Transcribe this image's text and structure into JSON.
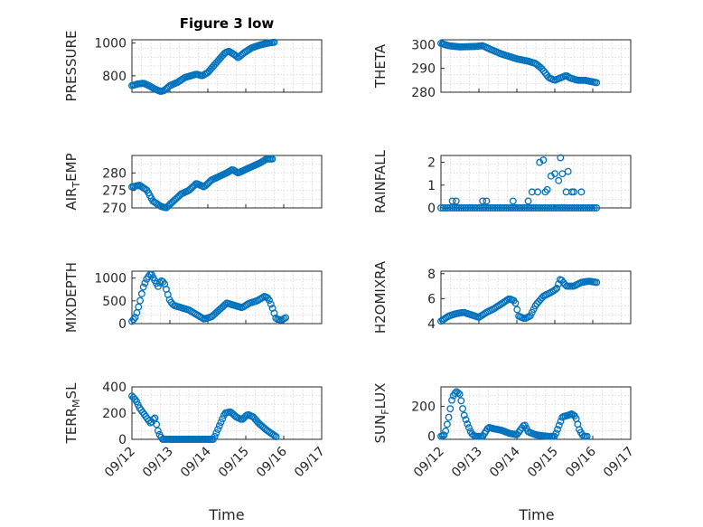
{
  "figure": {
    "title": "Figure 3 low",
    "xlabel": "Time"
  },
  "colors": {
    "series": "#0072BD",
    "axis": "#262626",
    "grid": "#c9c9c9"
  },
  "chart_data": [
    {
      "type": "scatter",
      "ylabel": "PRESSURE",
      "xlim": [
        "09/12",
        "09/17"
      ],
      "ylim": [
        700,
        1020
      ],
      "yticks": [
        800,
        1000
      ],
      "grid": true,
      "show_xticklabels": false,
      "title": "Figure 3 low",
      "keypoints": [
        [
          0.0,
          740
        ],
        [
          0.15,
          750
        ],
        [
          0.3,
          755
        ],
        [
          0.45,
          740
        ],
        [
          0.6,
          720
        ],
        [
          0.75,
          705
        ],
        [
          0.85,
          710
        ],
        [
          1.0,
          740
        ],
        [
          1.2,
          760
        ],
        [
          1.4,
          790
        ],
        [
          1.55,
          800
        ],
        [
          1.7,
          810
        ],
        [
          1.85,
          800
        ],
        [
          2.0,
          820
        ],
        [
          2.15,
          860
        ],
        [
          2.3,
          900
        ],
        [
          2.45,
          940
        ],
        [
          2.55,
          950
        ],
        [
          2.7,
          930
        ],
        [
          2.8,
          910
        ],
        [
          2.95,
          940
        ],
        [
          3.15,
          970
        ],
        [
          3.4,
          990
        ],
        [
          3.6,
          1000
        ],
        [
          3.75,
          1005
        ]
      ],
      "n_points": 95
    },
    {
      "type": "scatter",
      "ylabel": "THETA",
      "xlim": [
        "09/12",
        "09/17"
      ],
      "ylim": [
        280,
        302
      ],
      "yticks": [
        280,
        290,
        300
      ],
      "grid": true,
      "show_xticklabels": false,
      "keypoints": [
        [
          0.0,
          300.5
        ],
        [
          0.2,
          299.5
        ],
        [
          0.5,
          299.0
        ],
        [
          0.9,
          299.2
        ],
        [
          1.1,
          299.5
        ],
        [
          1.3,
          298
        ],
        [
          1.6,
          296
        ],
        [
          2.0,
          294
        ],
        [
          2.3,
          293
        ],
        [
          2.5,
          292
        ],
        [
          2.65,
          290
        ],
        [
          2.85,
          286
        ],
        [
          3.0,
          285
        ],
        [
          3.15,
          286
        ],
        [
          3.3,
          287
        ],
        [
          3.4,
          286
        ],
        [
          3.6,
          285
        ],
        [
          3.8,
          285
        ],
        [
          3.95,
          284.5
        ],
        [
          4.1,
          284
        ]
      ],
      "n_points": 95
    },
    {
      "type": "scatter",
      "ylabel": "AIR_TEMP",
      "xlim": [
        "09/12",
        "09/17"
      ],
      "ylim": [
        270,
        285
      ],
      "yticks": [
        270,
        275,
        280
      ],
      "grid": true,
      "show_xticklabels": false,
      "keypoints": [
        [
          0.0,
          276
        ],
        [
          0.2,
          276.5
        ],
        [
          0.4,
          275
        ],
        [
          0.55,
          272
        ],
        [
          0.75,
          270.5
        ],
        [
          0.9,
          270
        ],
        [
          1.1,
          272
        ],
        [
          1.3,
          274
        ],
        [
          1.5,
          275
        ],
        [
          1.7,
          277
        ],
        [
          1.9,
          276
        ],
        [
          2.1,
          278
        ],
        [
          2.3,
          279
        ],
        [
          2.5,
          280
        ],
        [
          2.65,
          281
        ],
        [
          2.8,
          280
        ],
        [
          3.0,
          281
        ],
        [
          3.2,
          282
        ],
        [
          3.4,
          283
        ],
        [
          3.55,
          284
        ],
        [
          3.7,
          284
        ]
      ],
      "n_points": 95
    },
    {
      "type": "scatter",
      "ylabel": "RAINFALL",
      "xlim": [
        "09/12",
        "09/17"
      ],
      "ylim": [
        0,
        2.3
      ],
      "yticks": [
        0,
        1,
        2
      ],
      "grid": true,
      "show_xticklabels": false,
      "baseline": {
        "x_start": 0.0,
        "x_end": 4.1,
        "y": 0,
        "n": 70
      },
      "spikes": [
        [
          0.3,
          0.3
        ],
        [
          0.4,
          0.3
        ],
        [
          1.1,
          0.3
        ],
        [
          1.2,
          0.3
        ],
        [
          1.9,
          0.3
        ],
        [
          2.3,
          0.3
        ],
        [
          2.4,
          0.7
        ],
        [
          2.55,
          0.7
        ],
        [
          2.6,
          2.0
        ],
        [
          2.7,
          2.1
        ],
        [
          2.75,
          0.7
        ],
        [
          2.8,
          0.8
        ],
        [
          2.9,
          1.4
        ],
        [
          3.0,
          1.5
        ],
        [
          3.1,
          1.2
        ],
        [
          3.15,
          2.2
        ],
        [
          3.2,
          1.5
        ],
        [
          3.3,
          0.7
        ],
        [
          3.35,
          1.6
        ],
        [
          3.45,
          0.7
        ],
        [
          3.5,
          0.7
        ],
        [
          3.7,
          0.7
        ]
      ]
    },
    {
      "type": "scatter",
      "ylabel": "MIXDEPTH",
      "xlim": [
        "09/12",
        "09/17"
      ],
      "ylim": [
        0,
        1150
      ],
      "yticks": [
        0,
        500,
        1000
      ],
      "grid": true,
      "show_xticklabels": false,
      "keypoints": [
        [
          0.0,
          50
        ],
        [
          0.1,
          150
        ],
        [
          0.2,
          450
        ],
        [
          0.3,
          800
        ],
        [
          0.4,
          1000
        ],
        [
          0.5,
          1100
        ],
        [
          0.6,
          950
        ],
        [
          0.7,
          800
        ],
        [
          0.75,
          950
        ],
        [
          0.85,
          900
        ],
        [
          1.0,
          500
        ],
        [
          1.1,
          400
        ],
        [
          1.3,
          350
        ],
        [
          1.5,
          300
        ],
        [
          1.7,
          200
        ],
        [
          1.9,
          100
        ],
        [
          2.1,
          150
        ],
        [
          2.3,
          300
        ],
        [
          2.5,
          450
        ],
        [
          2.7,
          400
        ],
        [
          2.9,
          350
        ],
        [
          3.1,
          450
        ],
        [
          3.3,
          500
        ],
        [
          3.5,
          600
        ],
        [
          3.6,
          550
        ],
        [
          3.7,
          350
        ],
        [
          3.8,
          100
        ],
        [
          3.95,
          80
        ],
        [
          4.05,
          130
        ]
      ],
      "n_points": 95
    },
    {
      "type": "scatter",
      "ylabel": "H2OMIXRA",
      "xlim": [
        "09/12",
        "09/17"
      ],
      "ylim": [
        4,
        8.2
      ],
      "yticks": [
        4,
        6,
        8
      ],
      "grid": true,
      "show_xticklabels": false,
      "keypoints": [
        [
          0.0,
          4.2
        ],
        [
          0.2,
          4.6
        ],
        [
          0.4,
          4.8
        ],
        [
          0.6,
          4.9
        ],
        [
          0.8,
          4.7
        ],
        [
          1.0,
          4.5
        ],
        [
          1.2,
          4.9
        ],
        [
          1.4,
          5.2
        ],
        [
          1.6,
          5.6
        ],
        [
          1.8,
          6.0
        ],
        [
          1.95,
          5.8
        ],
        [
          2.05,
          4.6
        ],
        [
          2.2,
          4.4
        ],
        [
          2.35,
          4.6
        ],
        [
          2.5,
          5.5
        ],
        [
          2.7,
          6.2
        ],
        [
          2.9,
          6.5
        ],
        [
          3.05,
          6.8
        ],
        [
          3.15,
          7.6
        ],
        [
          3.3,
          7.0
        ],
        [
          3.5,
          7.0
        ],
        [
          3.7,
          7.3
        ],
        [
          3.9,
          7.4
        ],
        [
          4.1,
          7.3
        ]
      ],
      "n_points": 95
    },
    {
      "type": "scatter",
      "ylabel": "TERR_MSL",
      "xlim": [
        "09/12",
        "09/17"
      ],
      "ylim": [
        0,
        400
      ],
      "yticks": [
        0,
        200,
        400
      ],
      "grid": true,
      "show_xticklabels": true,
      "xticklabels": [
        "09/12",
        "09/13",
        "09/14",
        "09/15",
        "09/16",
        "09/17"
      ],
      "keypoints": [
        [
          0.0,
          330
        ],
        [
          0.1,
          300
        ],
        [
          0.2,
          240
        ],
        [
          0.35,
          180
        ],
        [
          0.5,
          120
        ],
        [
          0.6,
          170
        ],
        [
          0.7,
          50
        ],
        [
          0.8,
          0
        ],
        [
          1.0,
          0
        ],
        [
          1.5,
          0
        ],
        [
          2.0,
          0
        ],
        [
          2.15,
          0
        ],
        [
          2.3,
          100
        ],
        [
          2.45,
          200
        ],
        [
          2.6,
          210
        ],
        [
          2.75,
          170
        ],
        [
          2.9,
          150
        ],
        [
          3.05,
          190
        ],
        [
          3.2,
          170
        ],
        [
          3.35,
          120
        ],
        [
          3.55,
          70
        ],
        [
          3.7,
          40
        ],
        [
          3.8,
          20
        ]
      ],
      "n_points": 95
    },
    {
      "type": "scatter",
      "ylabel": "SUN_FLUX",
      "xlim": [
        "09/12",
        "09/17"
      ],
      "ylim": [
        -20,
        330
      ],
      "yticks": [
        0,
        200
      ],
      "grid": true,
      "show_xticklabels": true,
      "xticklabels": [
        "09/12",
        "09/13",
        "09/14",
        "09/15",
        "09/16",
        "09/17"
      ],
      "keypoints": [
        [
          0.0,
          0
        ],
        [
          0.1,
          10
        ],
        [
          0.2,
          120
        ],
        [
          0.3,
          260
        ],
        [
          0.4,
          300
        ],
        [
          0.5,
          280
        ],
        [
          0.6,
          150
        ],
        [
          0.7,
          80
        ],
        [
          0.8,
          20
        ],
        [
          0.9,
          0
        ],
        [
          1.1,
          0
        ],
        [
          1.25,
          60
        ],
        [
          1.4,
          50
        ],
        [
          1.6,
          40
        ],
        [
          1.8,
          20
        ],
        [
          2.0,
          10
        ],
        [
          2.2,
          80
        ],
        [
          2.3,
          30
        ],
        [
          2.5,
          10
        ],
        [
          2.8,
          0
        ],
        [
          3.0,
          0
        ],
        [
          3.2,
          130
        ],
        [
          3.35,
          140
        ],
        [
          3.45,
          150
        ],
        [
          3.55,
          130
        ],
        [
          3.65,
          40
        ],
        [
          3.75,
          0
        ],
        [
          3.85,
          0
        ]
      ],
      "n_points": 95
    }
  ]
}
